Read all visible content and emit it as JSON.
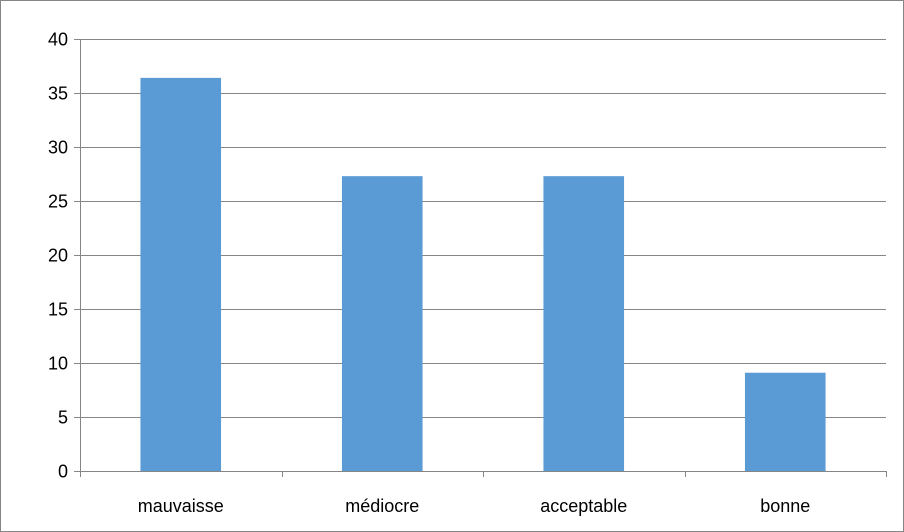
{
  "chart_data": {
    "type": "bar",
    "categories": [
      "mauvaisse",
      "médiocre",
      "acceptable",
      "bonne"
    ],
    "values": [
      36.4,
      27.3,
      27.3,
      9.1
    ],
    "title": "",
    "xlabel": "",
    "ylabel": "",
    "ylim": [
      0,
      40
    ],
    "y_ticks": [
      0,
      5,
      10,
      15,
      20,
      25,
      30,
      35,
      40
    ],
    "grid": true,
    "legend": "none",
    "colors": {
      "bar": "#5B9BD5",
      "grid": "#868686",
      "axis": "#868686",
      "border": "#868686",
      "text": "#000000"
    }
  }
}
